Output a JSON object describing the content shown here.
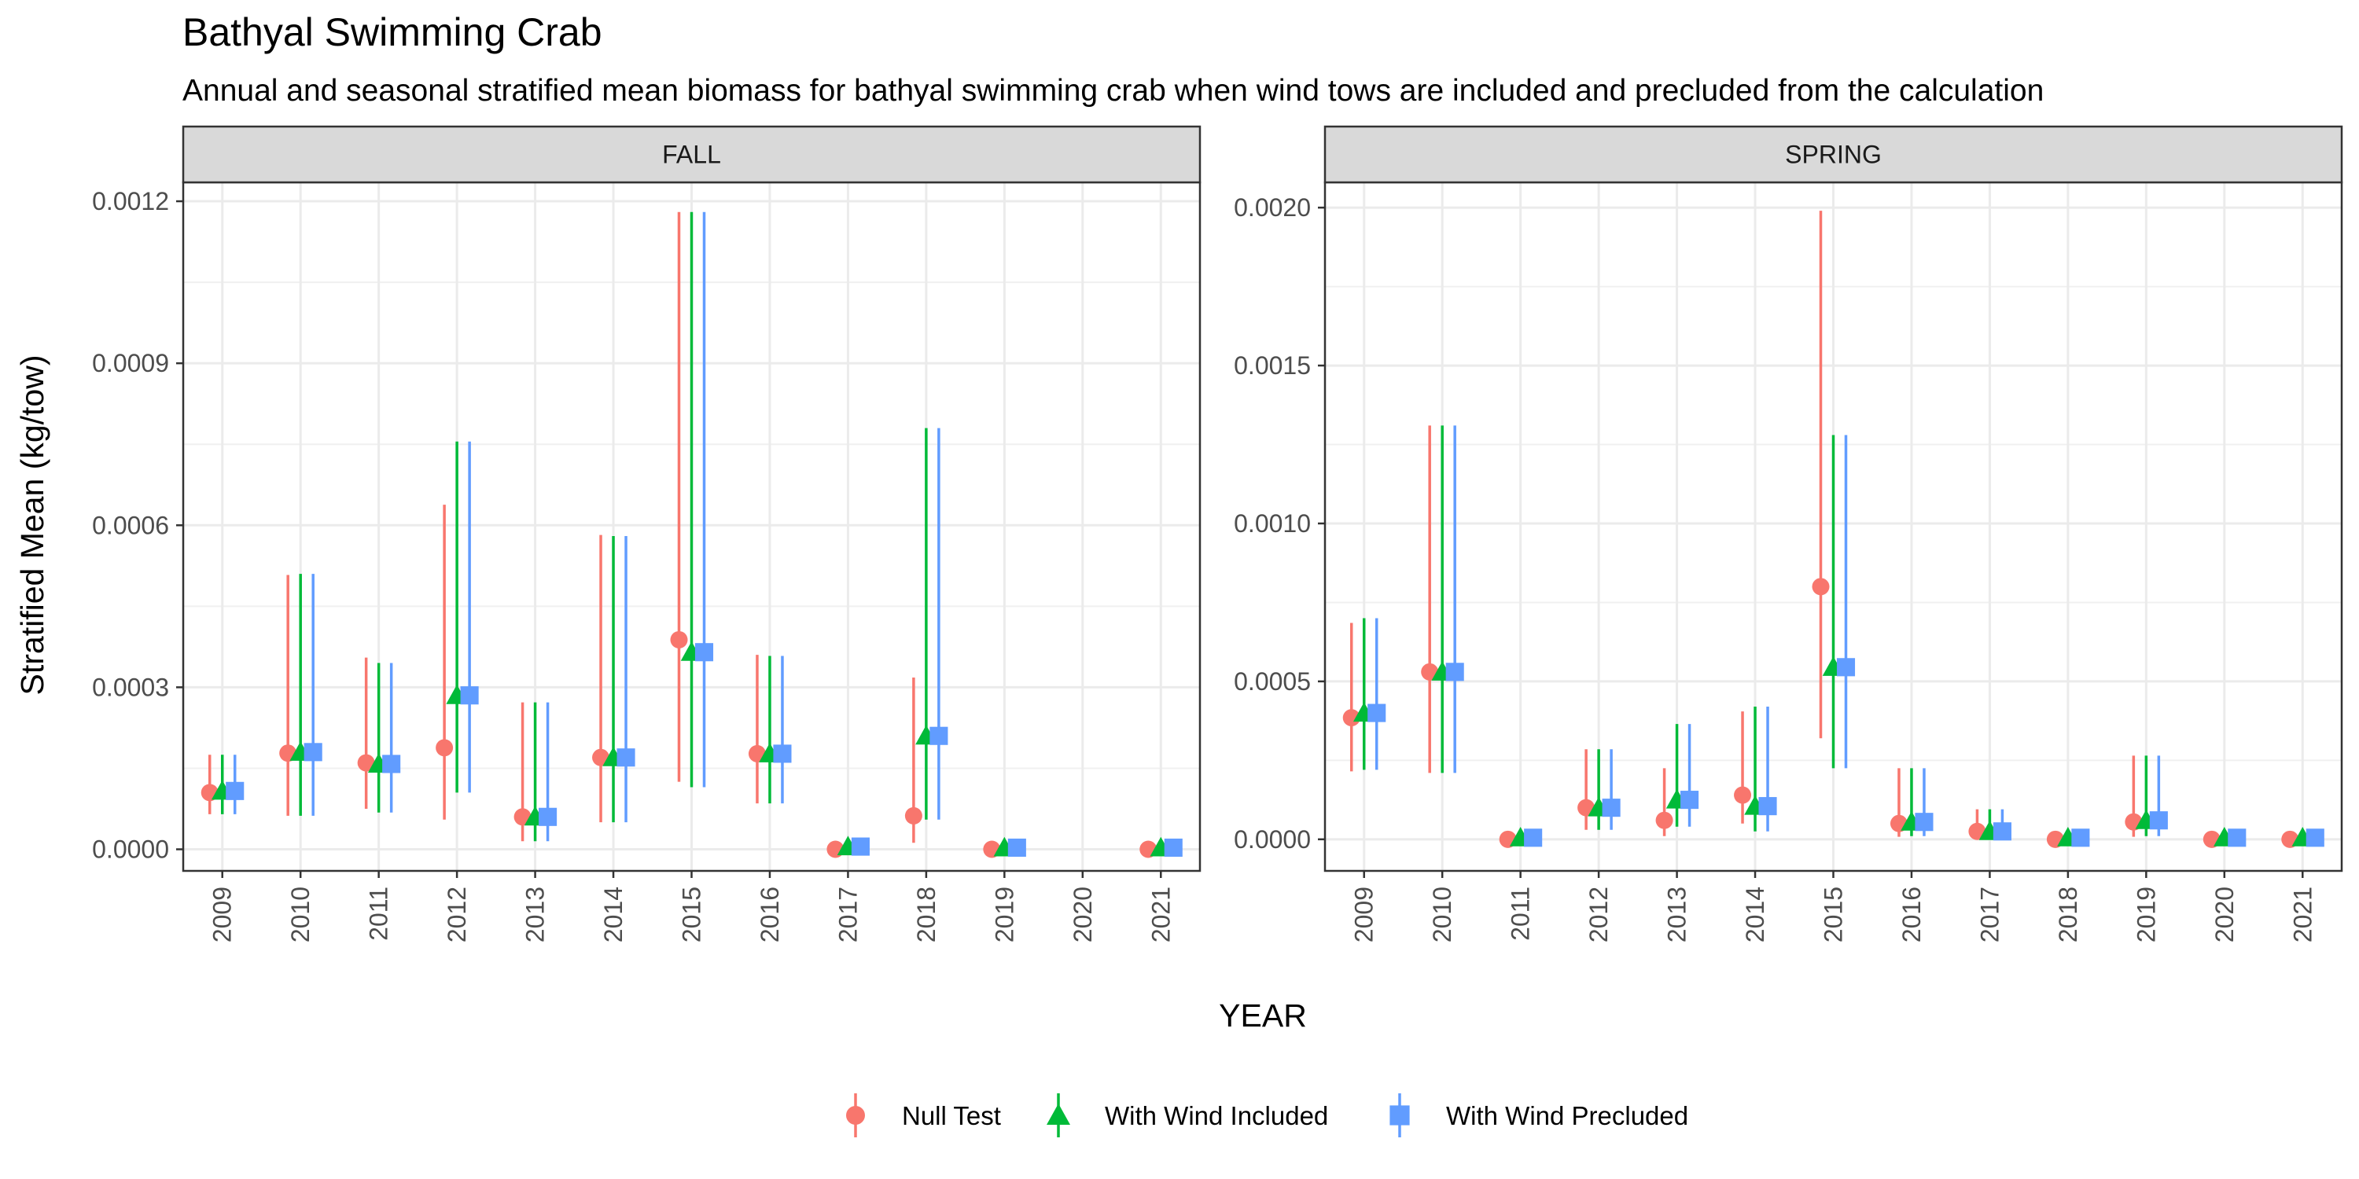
{
  "chart_data": {
    "type": "scatter",
    "title": "Bathyal Swimming Crab",
    "subtitle": "Annual and seasonal stratified mean biomass for bathyal swimming crab when wind tows are included and precluded from the calculation",
    "xlabel": "YEAR",
    "ylabel": "Stratified Mean (kg/tow)",
    "categories": [
      "2009",
      "2010",
      "2011",
      "2012",
      "2013",
      "2014",
      "2015",
      "2016",
      "2017",
      "2018",
      "2019",
      "2020",
      "2021"
    ],
    "legend_position": "bottom",
    "grid": true,
    "colors": {
      "null": "#F8766D",
      "incl": "#00BA38",
      "prec": "#619CFF"
    },
    "legend": [
      {
        "key": "null",
        "label": "Null Test",
        "marker": "circle"
      },
      {
        "key": "incl",
        "label": "With Wind Included",
        "marker": "triangle"
      },
      {
        "key": "prec",
        "label": "With Wind Precluded",
        "marker": "square"
      }
    ],
    "panels": [
      {
        "strip": "FALL",
        "ylim": [
          -4e-05,
          0.001235
        ],
        "yticks": [
          0,
          0.0003,
          0.0006,
          0.0009,
          0.0012
        ],
        "ytick_labels": [
          "0.0000",
          "0.0003",
          "0.0006",
          "0.0009",
          "0.0012"
        ],
        "series": [
          {
            "key": "null",
            "name": "Null Test",
            "points": [
              {
                "year": "2009",
                "value": 0.000105,
                "lo": 6.5e-05,
                "hi": 0.000175
              },
              {
                "year": "2010",
                "value": 0.000178,
                "lo": 6.2e-05,
                "hi": 0.000508
              },
              {
                "year": "2011",
                "value": 0.00016,
                "lo": 7.5e-05,
                "hi": 0.000355
              },
              {
                "year": "2012",
                "value": 0.000188,
                "lo": 5.5e-05,
                "hi": 0.000638
              },
              {
                "year": "2013",
                "value": 6e-05,
                "lo": 1.5e-05,
                "hi": 0.000272
              },
              {
                "year": "2014",
                "value": 0.00017,
                "lo": 5e-05,
                "hi": 0.000582
              },
              {
                "year": "2015",
                "value": 0.000388,
                "lo": 0.000125,
                "hi": 0.00118
              },
              {
                "year": "2016",
                "value": 0.000177,
                "lo": 8.5e-05,
                "hi": 0.00036
              },
              {
                "year": "2017",
                "value": 0.0,
                "lo": 0.0,
                "hi": 0.0
              },
              {
                "year": "2018",
                "value": 6.2e-05,
                "lo": 1.2e-05,
                "hi": 0.000318
              },
              {
                "year": "2019",
                "value": 0.0,
                "lo": 0.0,
                "hi": 0.0
              },
              {
                "year": "2021",
                "value": 0.0,
                "lo": 0.0,
                "hi": 0.0
              }
            ]
          },
          {
            "key": "incl",
            "name": "With Wind Included",
            "points": [
              {
                "year": "2009",
                "value": 0.000108,
                "lo": 6.5e-05,
                "hi": 0.000175
              },
              {
                "year": "2010",
                "value": 0.00018,
                "lo": 6.2e-05,
                "hi": 0.00051
              },
              {
                "year": "2011",
                "value": 0.000158,
                "lo": 6.8e-05,
                "hi": 0.000345
              },
              {
                "year": "2012",
                "value": 0.000285,
                "lo": 0.000105,
                "hi": 0.000755
              },
              {
                "year": "2013",
                "value": 6e-05,
                "lo": 1.5e-05,
                "hi": 0.000272
              },
              {
                "year": "2014",
                "value": 0.00017,
                "lo": 5e-05,
                "hi": 0.00058
              },
              {
                "year": "2015",
                "value": 0.000365,
                "lo": 0.000115,
                "hi": 0.00118
              },
              {
                "year": "2016",
                "value": 0.000177,
                "lo": 8.5e-05,
                "hi": 0.000358
              },
              {
                "year": "2017",
                "value": 5e-06,
                "lo": 0.0,
                "hi": 1e-05
              },
              {
                "year": "2018",
                "value": 0.00021,
                "lo": 5.5e-05,
                "hi": 0.00078
              },
              {
                "year": "2019",
                "value": 3e-06,
                "lo": 0.0,
                "hi": 6e-06
              },
              {
                "year": "2021",
                "value": 3e-06,
                "lo": 0.0,
                "hi": 6e-06
              }
            ]
          },
          {
            "key": "prec",
            "name": "With Wind Precluded",
            "points": [
              {
                "year": "2009",
                "value": 0.000108,
                "lo": 6.5e-05,
                "hi": 0.000175
              },
              {
                "year": "2010",
                "value": 0.00018,
                "lo": 6.2e-05,
                "hi": 0.00051
              },
              {
                "year": "2011",
                "value": 0.000158,
                "lo": 6.8e-05,
                "hi": 0.000345
              },
              {
                "year": "2012",
                "value": 0.000285,
                "lo": 0.000105,
                "hi": 0.000755
              },
              {
                "year": "2013",
                "value": 6e-05,
                "lo": 1.5e-05,
                "hi": 0.000272
              },
              {
                "year": "2014",
                "value": 0.00017,
                "lo": 5e-05,
                "hi": 0.00058
              },
              {
                "year": "2015",
                "value": 0.000365,
                "lo": 0.000115,
                "hi": 0.00118
              },
              {
                "year": "2016",
                "value": 0.000177,
                "lo": 8.5e-05,
                "hi": 0.000358
              },
              {
                "year": "2017",
                "value": 5e-06,
                "lo": 0.0,
                "hi": 1e-05
              },
              {
                "year": "2018",
                "value": 0.00021,
                "lo": 5.5e-05,
                "hi": 0.00078
              },
              {
                "year": "2019",
                "value": 3e-06,
                "lo": 0.0,
                "hi": 6e-06
              },
              {
                "year": "2021",
                "value": 3e-06,
                "lo": 0.0,
                "hi": 6e-06
              }
            ]
          }
        ]
      },
      {
        "strip": "SPRING",
        "ylim": [
          -0.0001,
          0.00208
        ],
        "yticks": [
          0,
          0.0005,
          0.001,
          0.0015,
          0.002
        ],
        "ytick_labels": [
          "0.0000",
          "0.0005",
          "0.0010",
          "0.0015",
          "0.0020"
        ],
        "series": [
          {
            "key": "null",
            "name": "Null Test",
            "points": [
              {
                "year": "2009",
                "value": 0.000385,
                "lo": 0.000215,
                "hi": 0.000685
              },
              {
                "year": "2010",
                "value": 0.00053,
                "lo": 0.00021,
                "hi": 0.00131
              },
              {
                "year": "2011",
                "value": 0.0,
                "lo": 0.0,
                "hi": 0.0
              },
              {
                "year": "2012",
                "value": 0.0001,
                "lo": 3e-05,
                "hi": 0.000285
              },
              {
                "year": "2013",
                "value": 6e-05,
                "lo": 1e-05,
                "hi": 0.000225
              },
              {
                "year": "2014",
                "value": 0.00014,
                "lo": 5e-05,
                "hi": 0.000405
              },
              {
                "year": "2015",
                "value": 0.0008,
                "lo": 0.00032,
                "hi": 0.00199
              },
              {
                "year": "2016",
                "value": 5e-05,
                "lo": 8e-06,
                "hi": 0.000225
              },
              {
                "year": "2017",
                "value": 2.5e-05,
                "lo": 5e-06,
                "hi": 9.5e-05
              },
              {
                "year": "2018",
                "value": 0.0,
                "lo": 0.0,
                "hi": 0.0
              },
              {
                "year": "2019",
                "value": 5.5e-05,
                "lo": 8e-06,
                "hi": 0.000265
              },
              {
                "year": "2020",
                "value": 0.0,
                "lo": 0.0,
                "hi": 0.0
              },
              {
                "year": "2021",
                "value": 0.0,
                "lo": 0.0,
                "hi": 0.0
              }
            ]
          },
          {
            "key": "incl",
            "name": "With Wind Included",
            "points": [
              {
                "year": "2009",
                "value": 0.0004,
                "lo": 0.00022,
                "hi": 0.0007
              },
              {
                "year": "2010",
                "value": 0.00053,
                "lo": 0.00021,
                "hi": 0.00131
              },
              {
                "year": "2011",
                "value": 5e-06,
                "lo": 0.0,
                "hi": 1e-05
              },
              {
                "year": "2012",
                "value": 0.0001,
                "lo": 3e-05,
                "hi": 0.000285
              },
              {
                "year": "2013",
                "value": 0.000125,
                "lo": 4e-05,
                "hi": 0.000365
              },
              {
                "year": "2014",
                "value": 0.000105,
                "lo": 2.5e-05,
                "hi": 0.00042
              },
              {
                "year": "2015",
                "value": 0.000545,
                "lo": 0.000225,
                "hi": 0.00128
              },
              {
                "year": "2016",
                "value": 5.5e-05,
                "lo": 1e-05,
                "hi": 0.000225
              },
              {
                "year": "2017",
                "value": 2.5e-05,
                "lo": 5e-06,
                "hi": 9.5e-05
              },
              {
                "year": "2018",
                "value": 5e-06,
                "lo": 0.0,
                "hi": 1e-05
              },
              {
                "year": "2019",
                "value": 6e-05,
                "lo": 1e-05,
                "hi": 0.000265
              },
              {
                "year": "2020",
                "value": 5e-06,
                "lo": 0.0,
                "hi": 1e-05
              },
              {
                "year": "2021",
                "value": 5e-06,
                "lo": 0.0,
                "hi": 1e-05
              }
            ]
          },
          {
            "key": "prec",
            "name": "With Wind Precluded",
            "points": [
              {
                "year": "2009",
                "value": 0.0004,
                "lo": 0.00022,
                "hi": 0.0007
              },
              {
                "year": "2010",
                "value": 0.00053,
                "lo": 0.00021,
                "hi": 0.00131
              },
              {
                "year": "2011",
                "value": 5e-06,
                "lo": 0.0,
                "hi": 1e-05
              },
              {
                "year": "2012",
                "value": 0.0001,
                "lo": 3e-05,
                "hi": 0.000285
              },
              {
                "year": "2013",
                "value": 0.000125,
                "lo": 4e-05,
                "hi": 0.000365
              },
              {
                "year": "2014",
                "value": 0.000105,
                "lo": 2.5e-05,
                "hi": 0.00042
              },
              {
                "year": "2015",
                "value": 0.000545,
                "lo": 0.000225,
                "hi": 0.00128
              },
              {
                "year": "2016",
                "value": 5.5e-05,
                "lo": 1e-05,
                "hi": 0.000225
              },
              {
                "year": "2017",
                "value": 2.5e-05,
                "lo": 5e-06,
                "hi": 9.5e-05
              },
              {
                "year": "2018",
                "value": 5e-06,
                "lo": 0.0,
                "hi": 1e-05
              },
              {
                "year": "2019",
                "value": 6e-05,
                "lo": 1e-05,
                "hi": 0.000265
              },
              {
                "year": "2020",
                "value": 5e-06,
                "lo": 0.0,
                "hi": 1e-05
              },
              {
                "year": "2021",
                "value": 5e-06,
                "lo": 0.0,
                "hi": 1e-05
              }
            ]
          }
        ]
      }
    ]
  }
}
